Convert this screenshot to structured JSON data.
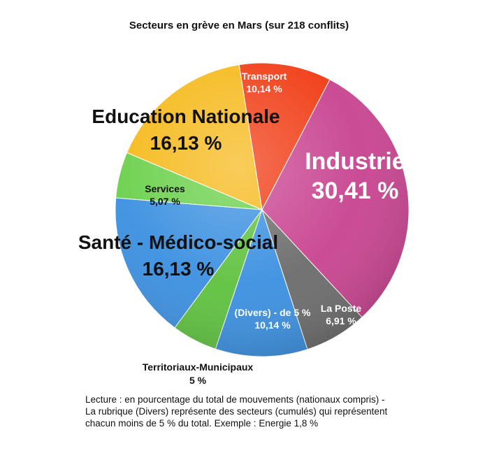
{
  "chart_data": {
    "type": "pie",
    "title": "Secteurs en grève en Mars  (sur 218 conflits)",
    "slices": [
      {
        "name": "Transport",
        "label": "10,14 %",
        "value": 10.14,
        "color": "#f03a12",
        "text_color": "#ffffff"
      },
      {
        "name": "Industrie",
        "label": "30,41 %",
        "value": 30.41,
        "color": "#c8428f",
        "text_color": "#ffffff"
      },
      {
        "name": "La Poste",
        "label": "6,91 %",
        "value": 6.91,
        "color": "#6b6b6b",
        "text_color": "#ffffff"
      },
      {
        "name": "(Divers) - de 5 %",
        "label": "10,14 %",
        "value": 10.14,
        "color": "#3a8fe0",
        "text_color": "#ffffff"
      },
      {
        "name": "Territoriaux-Municipaux",
        "label": "5 %",
        "value": 5,
        "color": "#5ec13e",
        "text_color": "#111111"
      },
      {
        "name": "Santé - Médico-social",
        "label": "16,13 %",
        "value": 16.13,
        "color": "#3a8fe0",
        "text_color": "#111111"
      },
      {
        "name": "Services",
        "label": "5,07 %",
        "value": 5.07,
        "color": "#6ad04a",
        "text_color": "#111111"
      },
      {
        "name": "Education Nationale",
        "label": "16,13 %",
        "value": 16.13,
        "color": "#f6b91a",
        "text_color": "#111111"
      }
    ]
  },
  "caption": {
    "line1": "Lecture : en pourcentage du total de mouvements (nationaux compris) -",
    "line2": "La rubrique (Divers) représente des secteurs (cumulés) qui représentent",
    "line3": "chacun moins de 5 % du total. Exemple : Energie 1,8 %"
  }
}
